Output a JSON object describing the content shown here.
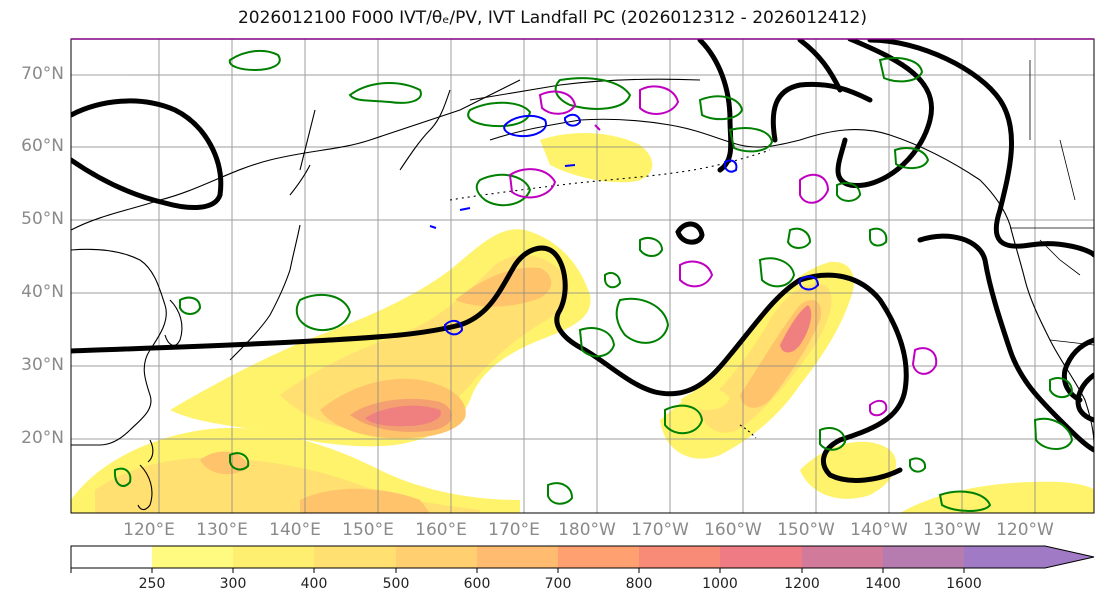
{
  "title": "2026012100 F000 IVT/θₑ/PV, IVT Landfall PC (2026012312 - 2026012412)",
  "map": {
    "lat_labels": [
      "70°N",
      "60°N",
      "50°N",
      "40°N",
      "30°N",
      "20°N"
    ],
    "lon_labels": [
      "120°E",
      "130°E",
      "140°E",
      "150°E",
      "160°E",
      "170°E",
      "180°W",
      "170°W",
      "160°W",
      "150°W",
      "140°W",
      "130°W",
      "120°W"
    ],
    "colors": {
      "ivt_low": "#fff36b",
      "ivt_mid": "#ffc36b",
      "ivt_high": "#f08080",
      "ivt_max": "#e0708a",
      "theta_e_contour": "#000000",
      "pv_positive": "#008000",
      "pv_blue": "#0000ff",
      "pv_magenta": "#c000c0",
      "coastline": "#000000",
      "grid": "#888888"
    }
  },
  "colorbar": {
    "ticks": [
      "250",
      "300",
      "400",
      "500",
      "600",
      "700",
      "800",
      "1000",
      "1200",
      "1400",
      "1600"
    ],
    "colors": [
      "#ffffff",
      "#fffa80",
      "#ffef70",
      "#ffe070",
      "#ffcf70",
      "#ffbb70",
      "#ffa070",
      "#f88a78",
      "#ef7c84",
      "#d27a9a",
      "#b67cb0",
      "#a07ac4"
    ]
  }
}
